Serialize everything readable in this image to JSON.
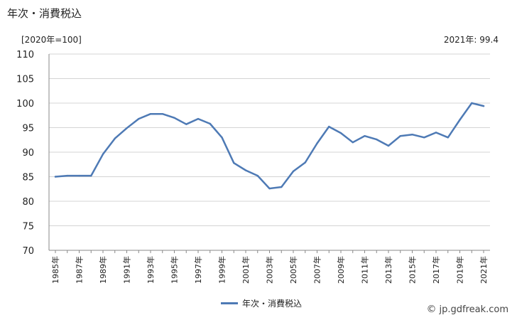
{
  "header": {
    "title": "年次・消費税込",
    "unit": "[2020年=100]",
    "latest_note": "2021年: 99.4"
  },
  "legend": {
    "label": "年次・消費税込"
  },
  "watermark": {
    "icon": "copyright-icon",
    "text": "jp.gdfreak.com"
  },
  "colors": {
    "series": "#4e7ab5",
    "grid": "#d4d4d4",
    "axis": "#888888"
  },
  "chart_data": {
    "type": "line",
    "x": [
      1985,
      1986,
      1987,
      1988,
      1989,
      1990,
      1991,
      1992,
      1993,
      1994,
      1995,
      1996,
      1997,
      1998,
      1999,
      2000,
      2001,
      2002,
      2003,
      2004,
      2005,
      2006,
      2007,
      2008,
      2009,
      2010,
      2011,
      2012,
      2013,
      2014,
      2015,
      2016,
      2017,
      2018,
      2019,
      2020,
      2021
    ],
    "series": [
      {
        "name": "年次・消費税込",
        "values": [
          85.0,
          85.2,
          85.2,
          85.2,
          89.6,
          92.8,
          94.9,
          96.8,
          97.8,
          97.8,
          97.0,
          95.7,
          96.8,
          95.8,
          93.0,
          87.8,
          86.3,
          85.2,
          82.6,
          82.9,
          86.1,
          87.9,
          91.8,
          95.2,
          93.9,
          92.0,
          93.3,
          92.6,
          91.3,
          93.3,
          93.6,
          93.0,
          94.0,
          93.0,
          96.6,
          100.0,
          99.4
        ]
      }
    ],
    "xtick_labels": [
      "1985年",
      "1987年",
      "1989年",
      "1991年",
      "1993年",
      "1995年",
      "1997年",
      "1999年",
      "2001年",
      "2003年",
      "2005年",
      "2007年",
      "2009年",
      "2011年",
      "2013年",
      "2015年",
      "2017年",
      "2019年",
      "2021年"
    ],
    "ylim": [
      70,
      110
    ],
    "yticks": [
      70,
      75,
      80,
      85,
      90,
      95,
      100,
      105,
      110
    ],
    "grid": "horizontal",
    "legend_position": "bottom-center",
    "title": "年次・消費税込",
    "ylabel": "[2020年=100]",
    "xlabel": ""
  }
}
